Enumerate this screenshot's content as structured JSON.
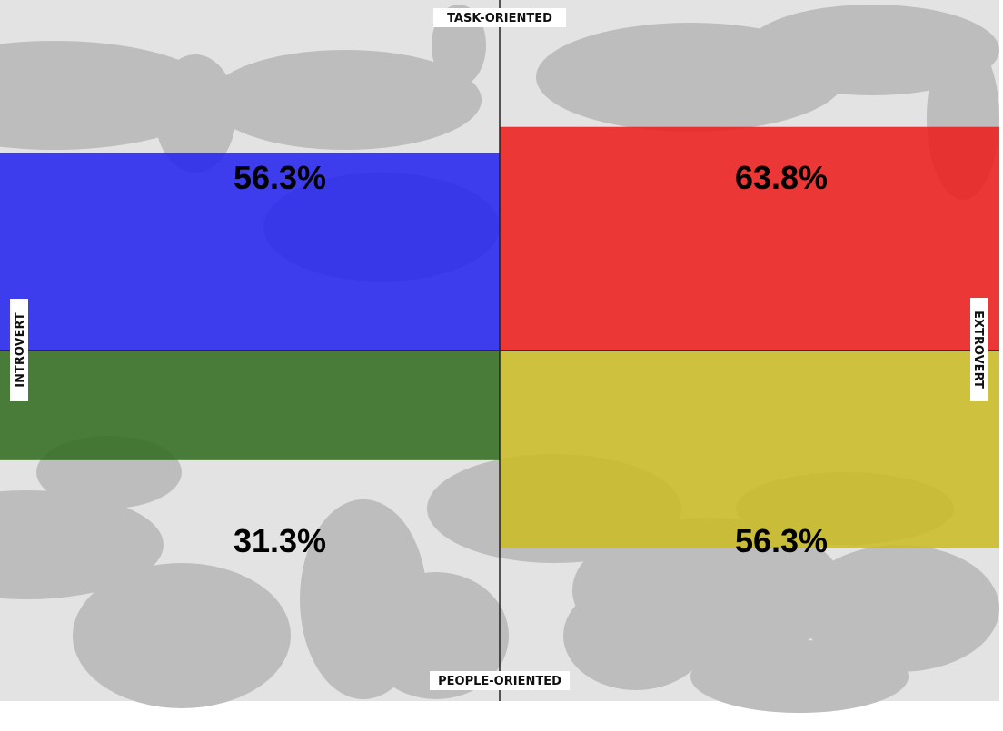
{
  "colors": {
    "background": "#e3e3e3",
    "map_land": "#bdbdbd",
    "axis": "#222222",
    "quadrant_colors": [
      "#2222f0",
      "#ee1b1b",
      "#2f6b1c",
      "#c9bb22"
    ]
  },
  "axes": {
    "top": "TASK-ORIENTED",
    "bottom": "PEOPLE-ORIENTED",
    "left": "INTROVERT",
    "right": "EXTROVERT"
  },
  "chart_data": {
    "type": "bar",
    "categories": [
      "top-left",
      "top-right",
      "bottom-left",
      "bottom-right"
    ],
    "values": [
      56.3,
      63.8,
      31.3,
      56.3
    ],
    "value_labels": [
      "56.3%",
      "63.8%",
      "31.3%",
      "56.3%"
    ],
    "ylim": [
      0,
      100
    ],
    "unit": "%",
    "grid": false,
    "legend": "none"
  }
}
